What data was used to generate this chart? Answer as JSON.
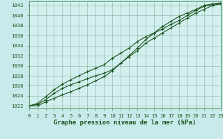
{
  "title": "Graphe pression niveau de la mer (hPa)",
  "background_color": "#c8eaea",
  "plot_bg_color": "#d4efef",
  "grid_color": "#4a8a5a",
  "line_color": "#1a5520",
  "hours": [
    0,
    1,
    2,
    3,
    4,
    5,
    6,
    7,
    8,
    9,
    10,
    11,
    12,
    13,
    14,
    15,
    16,
    17,
    18,
    19,
    20,
    21,
    22,
    23
  ],
  "line1": [
    1022.0,
    1022.3,
    1023.2,
    1024.5,
    1025.5,
    1026.2,
    1026.8,
    1027.4,
    1028.0,
    1028.5,
    1029.2,
    1030.5,
    1031.8,
    1033.0,
    1034.5,
    1035.5,
    1036.5,
    1037.5,
    1038.5,
    1039.5,
    1040.5,
    1041.2,
    1042.0,
    1042.3
  ],
  "line2": [
    1022.0,
    1022.5,
    1023.8,
    1025.2,
    1026.3,
    1027.2,
    1028.0,
    1028.8,
    1029.5,
    1030.2,
    1031.5,
    1032.5,
    1033.5,
    1034.8,
    1035.8,
    1036.5,
    1037.3,
    1038.2,
    1039.0,
    1040.0,
    1041.0,
    1041.8,
    1042.2,
    1042.4
  ],
  "line3": [
    1022.0,
    1022.0,
    1022.8,
    1023.5,
    1024.2,
    1024.8,
    1025.5,
    1026.2,
    1027.0,
    1027.8,
    1029.0,
    1030.5,
    1032.0,
    1033.5,
    1035.2,
    1036.5,
    1037.8,
    1038.8,
    1039.8,
    1040.5,
    1041.2,
    1042.0,
    1042.3,
    1042.5
  ],
  "ylim": [
    1021.5,
    1042.8
  ],
  "yticks": [
    1022,
    1024,
    1026,
    1028,
    1030,
    1032,
    1034,
    1036,
    1038,
    1040,
    1042
  ],
  "xlim": [
    0,
    23
  ],
  "xticks": [
    0,
    1,
    2,
    3,
    4,
    5,
    6,
    7,
    8,
    9,
    10,
    11,
    12,
    13,
    14,
    15,
    16,
    17,
    18,
    19,
    20,
    21,
    22,
    23
  ],
  "tick_fontsize": 5.2,
  "label_fontsize": 6.5,
  "marker": "+",
  "marker_size": 3.5,
  "marker_edge_width": 0.8,
  "line_width": 0.8
}
